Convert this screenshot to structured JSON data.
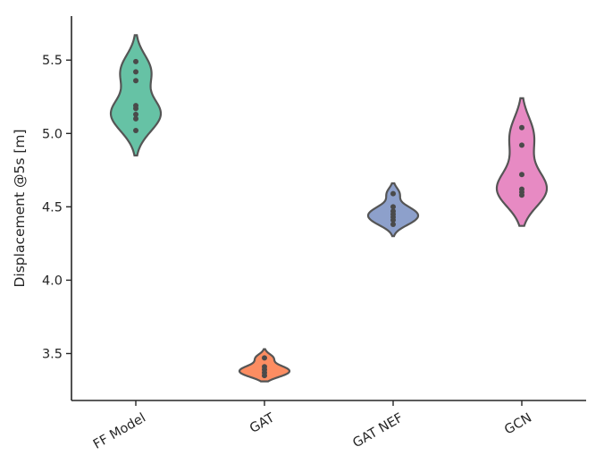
{
  "chart_data": {
    "type": "violin",
    "ylabel": "Displacement @5s [m]",
    "xlabel": "",
    "ylim": [
      3.18,
      5.8
    ],
    "yticks": [
      3.5,
      4.0,
      4.5,
      5.0,
      5.5
    ],
    "grid": false,
    "legend": "none",
    "categories": [
      "FF Model",
      "GAT",
      "GAT NEF",
      "GCN"
    ],
    "series": [
      {
        "category": "FF Model",
        "color": "#66c2a5",
        "observations": [
          5.02,
          5.1,
          5.13,
          5.17,
          5.19,
          5.36,
          5.42,
          5.49
        ],
        "min": 4.85,
        "max": 5.67,
        "mode": 5.17
      },
      {
        "category": "GAT",
        "color": "#fc8d62",
        "observations": [
          3.35,
          3.37,
          3.39,
          3.41,
          3.47
        ],
        "min": 3.31,
        "max": 3.53,
        "mode": 3.38
      },
      {
        "category": "GAT NEF",
        "color": "#8da0cb",
        "observations": [
          4.38,
          4.41,
          4.43,
          4.45,
          4.47,
          4.5,
          4.59
        ],
        "min": 4.3,
        "max": 4.66,
        "mode": 4.46
      },
      {
        "category": "GCN",
        "color": "#e78ac3",
        "observations": [
          4.58,
          4.6,
          4.62,
          4.72,
          4.92,
          5.04
        ],
        "min": 4.37,
        "max": 5.24,
        "mode": 4.61
      }
    ]
  }
}
